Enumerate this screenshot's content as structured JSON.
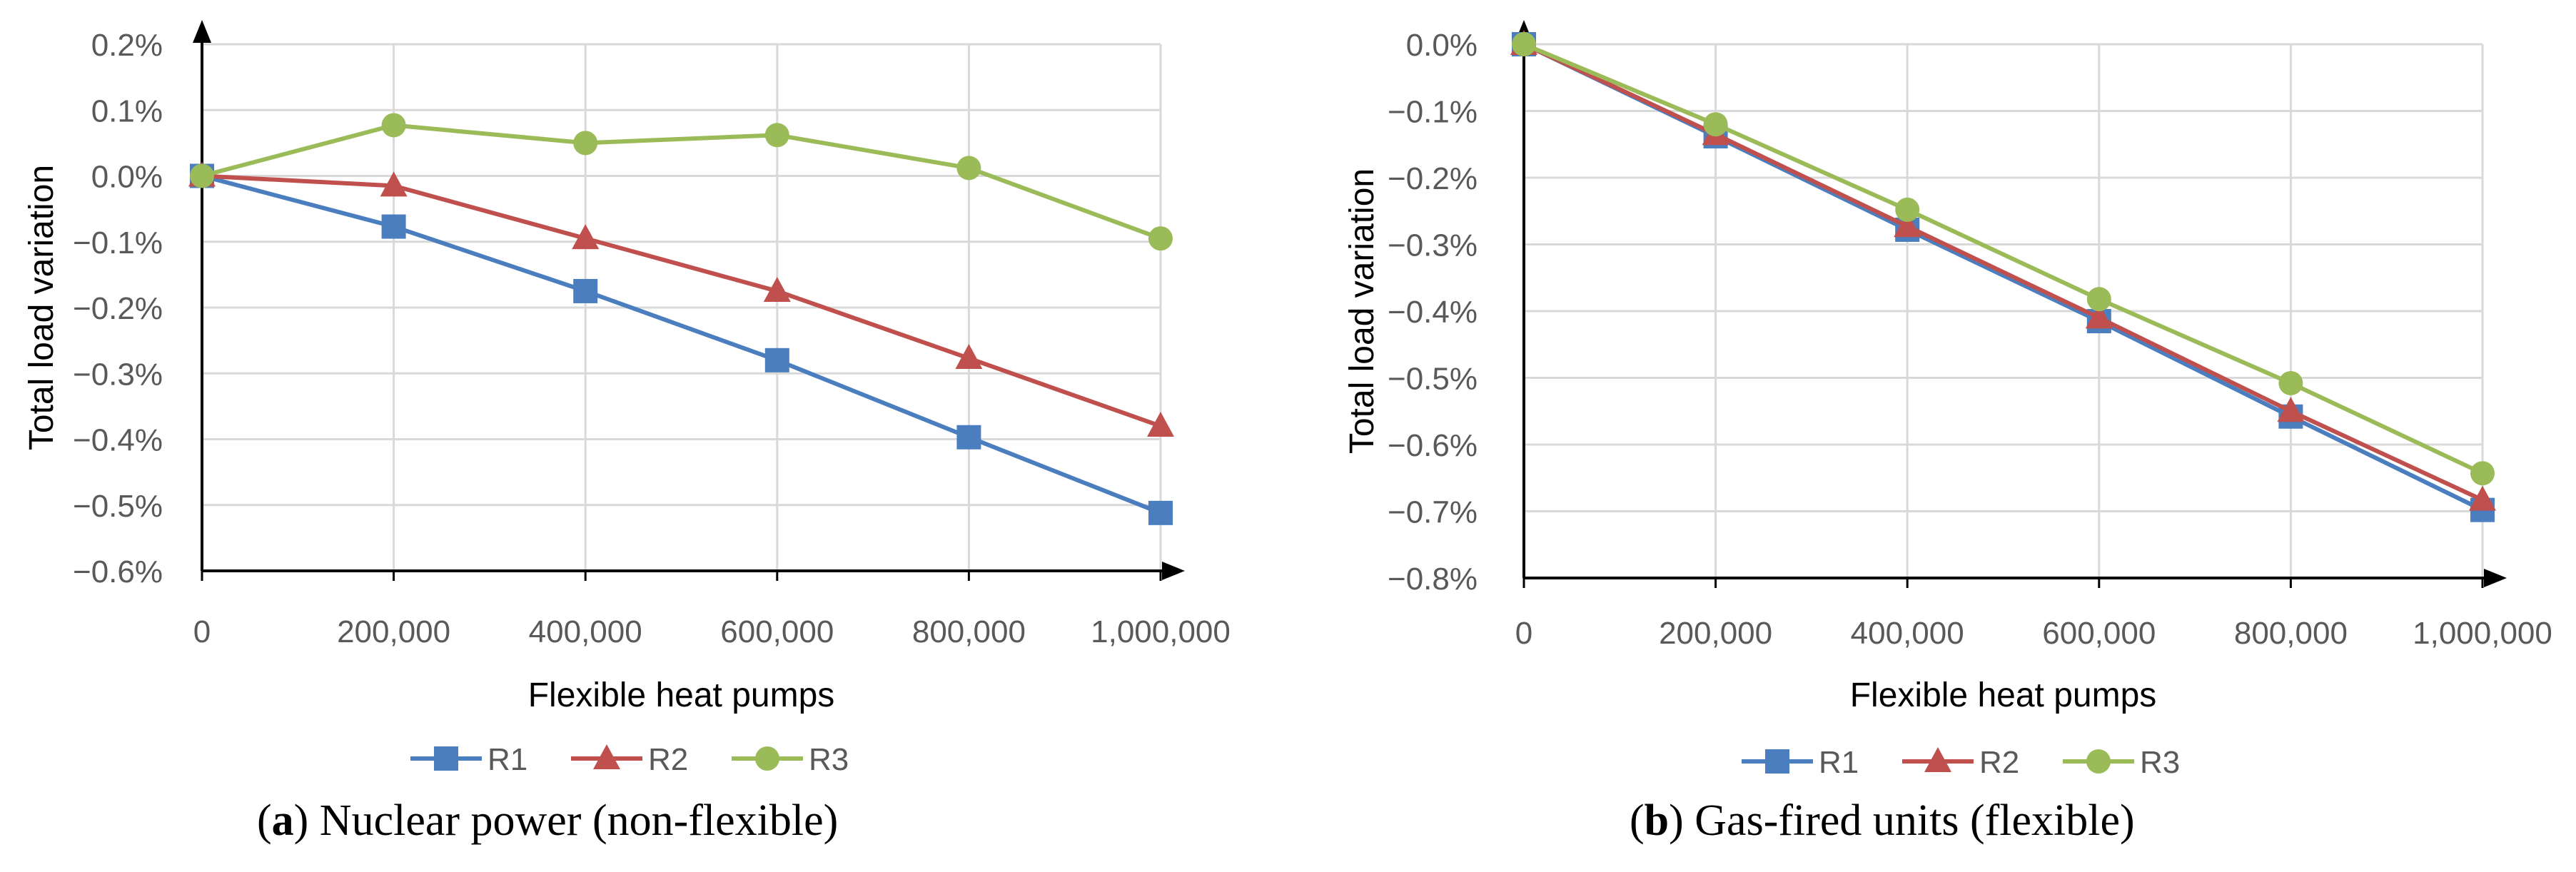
{
  "colors": {
    "R1": "#4a7ebf",
    "R2": "#c0504d",
    "R3": "#9bbb59",
    "grid": "#d9d9d9",
    "axis": "#000000"
  },
  "chart_data": [
    {
      "type": "line",
      "caption_letter": "a",
      "caption_text": " Nuclear power (non-flexible)",
      "xlabel": "Flexible heat pumps",
      "ylabel": "Total load variation",
      "x": [
        0,
        200000,
        400000,
        600000,
        800000,
        1000000
      ],
      "x_tick_labels": [
        "0",
        "200,000",
        "400,000",
        "600,000",
        "800,000",
        "1,000,000"
      ],
      "ylim": [
        -0.6,
        0.2
      ],
      "y_ticks": [
        0.2,
        0.1,
        0.0,
        -0.1,
        -0.2,
        -0.3,
        -0.4,
        -0.5,
        -0.6
      ],
      "y_tick_labels": [
        "0.2%",
        "0.1%",
        "0.0%",
        "−0.1%",
        "−0.2%",
        "−0.3%",
        "−0.4%",
        "−0.5%",
        "−0.6%"
      ],
      "series": [
        {
          "name": "R1",
          "marker": "square",
          "values": [
            0.0,
            -0.077,
            -0.175,
            -0.28,
            -0.397,
            -0.512
          ]
        },
        {
          "name": "R2",
          "marker": "triangle",
          "values": [
            0.0,
            -0.015,
            -0.095,
            -0.175,
            -0.277,
            -0.38
          ]
        },
        {
          "name": "R3",
          "marker": "circle",
          "values": [
            0.0,
            0.077,
            0.05,
            0.062,
            0.012,
            -0.095
          ]
        }
      ],
      "legend": [
        "R1",
        "R2",
        "R3"
      ]
    },
    {
      "type": "line",
      "caption_letter": "b",
      "caption_text": " Gas-fired units (flexible)",
      "xlabel": "Flexible heat pumps",
      "ylabel": "Total load variation",
      "x": [
        0,
        200000,
        400000,
        600000,
        800000,
        1000000
      ],
      "x_tick_labels": [
        "0",
        "200,000",
        "400,000",
        "600,000",
        "800,000",
        "1,000,000"
      ],
      "ylim": [
        -0.8,
        0.0
      ],
      "y_ticks": [
        0.0,
        -0.1,
        -0.2,
        -0.3,
        -0.4,
        -0.5,
        -0.6,
        -0.7,
        -0.8
      ],
      "y_tick_labels": [
        "0.0%",
        "−0.1%",
        "−0.2%",
        "−0.3%",
        "−0.4%",
        "−0.5%",
        "−0.6%",
        "−0.7%",
        "−0.8%"
      ],
      "series": [
        {
          "name": "R1",
          "marker": "square",
          "values": [
            0.0,
            -0.138,
            -0.278,
            -0.415,
            -0.558,
            -0.698
          ]
        },
        {
          "name": "R2",
          "marker": "triangle",
          "values": [
            0.0,
            -0.135,
            -0.273,
            -0.41,
            -0.55,
            -0.683
          ]
        },
        {
          "name": "R3",
          "marker": "circle",
          "values": [
            0.0,
            -0.12,
            -0.248,
            -0.382,
            -0.508,
            -0.643
          ]
        }
      ],
      "legend": [
        "R1",
        "R2",
        "R3"
      ]
    }
  ]
}
